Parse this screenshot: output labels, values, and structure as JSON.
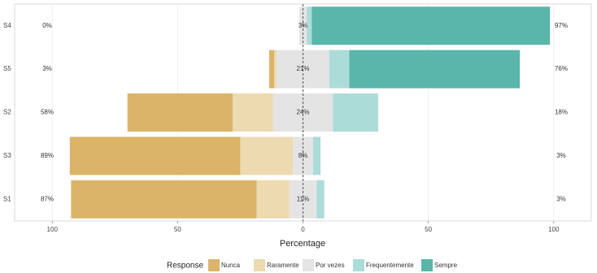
{
  "chart_data": {
    "type": "diverging_bar",
    "categories": [
      "S4",
      "S5",
      "S2",
      "S3",
      "S1"
    ],
    "series": [
      {
        "name": "Nunca",
        "color": "#dcb469",
        "values": [
          0,
          2,
          42,
          68,
          74
        ]
      },
      {
        "name": "Raramente",
        "color": "#ecdab0",
        "values": [
          0,
          1,
          16,
          21,
          13
        ]
      },
      {
        "name": "Por vezes",
        "color": "#e4e4e4",
        "values": [
          3,
          21,
          24,
          8,
          11
        ]
      },
      {
        "name": "Frequentemente",
        "color": "#acdcd8",
        "values": [
          2,
          8,
          18,
          3,
          3
        ]
      },
      {
        "name": "Sempre",
        "color": "#5ab6aa",
        "values": [
          95,
          68,
          0,
          0,
          0
        ]
      }
    ],
    "left_labels": [
      "0%",
      "3%",
      "58%",
      "89%",
      "87%"
    ],
    "center_labels": [
      "3%",
      "21%",
      "24%",
      "8%",
      "11%"
    ],
    "right_labels": [
      "97%",
      "76%",
      "18%",
      "3%",
      "3%"
    ],
    "xlabel": "Percentage",
    "legend_title": "Response",
    "xlim": [
      -115,
      115
    ],
    "xticks": [
      {
        "value": -100,
        "label": "100"
      },
      {
        "value": -50,
        "label": "50"
      },
      0,
      50,
      100
    ],
    "grid": true
  }
}
